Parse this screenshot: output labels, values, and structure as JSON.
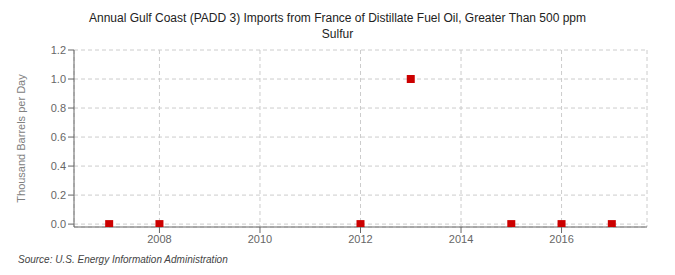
{
  "chart_data": {
    "type": "scatter",
    "title": "Annual Gulf Coast (PADD 3) Imports from France of Distillate Fuel Oil, Greater Than 500 ppm\nSulfur",
    "y_label": "Thousand Barrels per Day",
    "annotations": [
      "Source: U.S. Energy Information Administration"
    ],
    "x": [
      2007,
      2008,
      2012,
      2013,
      2015,
      2016,
      2017
    ],
    "values": [
      0.0,
      0.0,
      0.0,
      1.0,
      0.0,
      0.0,
      0.0
    ],
    "color": "#cc0000",
    "marker": "square",
    "xlim": [
      2006.3,
      2017.7
    ],
    "ylim": [
      -0.02,
      1.2
    ],
    "xticks": [
      2008,
      2010,
      2012,
      2014,
      2016
    ],
    "yticks": [
      {
        "value": 0,
        "label": "0.0"
      },
      0.2,
      0.4,
      0.6,
      0.8,
      {
        "value": 1,
        "label": "1.0"
      },
      1.2
    ],
    "grid": true
  }
}
